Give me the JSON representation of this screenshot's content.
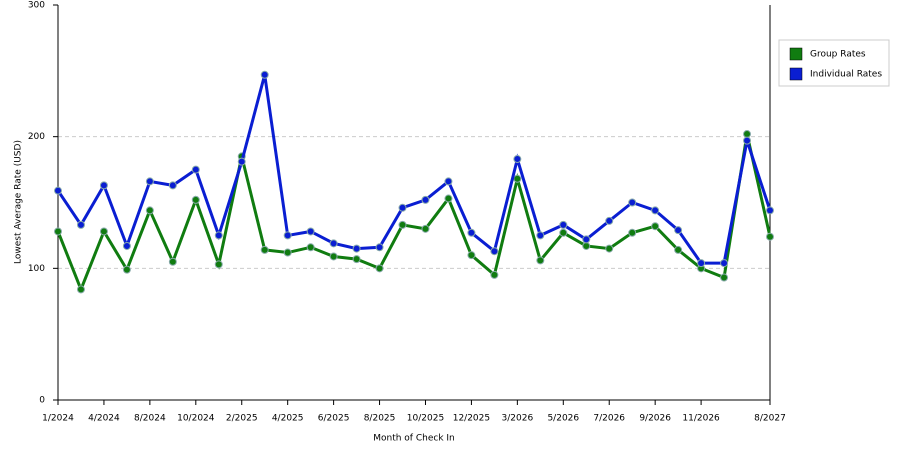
{
  "chart_data": {
    "type": "line",
    "x_label": "Month of Check In",
    "y_label": "Lowest Average Rate (USD)",
    "categories": [
      "1/2024",
      null,
      "4/2024",
      null,
      "8/2024",
      null,
      "10/2024",
      null,
      "2/2025",
      null,
      "4/2025",
      null,
      "6/2025",
      null,
      "8/2025",
      null,
      "10/2025",
      null,
      "12/2025",
      null,
      "3/2026",
      null,
      "5/2026",
      null,
      "7/2026",
      null,
      "9/2026",
      null,
      "11/2026",
      null,
      null,
      "8/2027"
    ],
    "series": [
      {
        "name": "Group Rates",
        "color": "#107c10",
        "values": [
          128,
          84,
          128,
          99,
          144,
          105,
          152,
          103,
          185,
          114,
          112,
          116,
          109,
          107,
          100,
          133,
          130,
          153,
          110,
          95,
          168,
          106,
          127,
          117,
          115,
          127,
          132,
          114,
          100,
          93,
          202,
          124
        ]
      },
      {
        "name": "Individual Rates",
        "color": "#0a1ed2",
        "values": [
          159,
          133,
          163,
          117,
          166,
          163,
          175,
          125,
          181,
          247,
          125,
          128,
          119,
          115,
          116,
          146,
          152,
          166,
          127,
          113,
          183,
          125,
          133,
          122,
          136,
          150,
          144,
          129,
          104,
          104,
          197,
          144
        ]
      }
    ],
    "ylim": [
      0,
      300
    ],
    "yticks": [
      0,
      100,
      200,
      300
    ],
    "grid": true,
    "legend": "right"
  }
}
